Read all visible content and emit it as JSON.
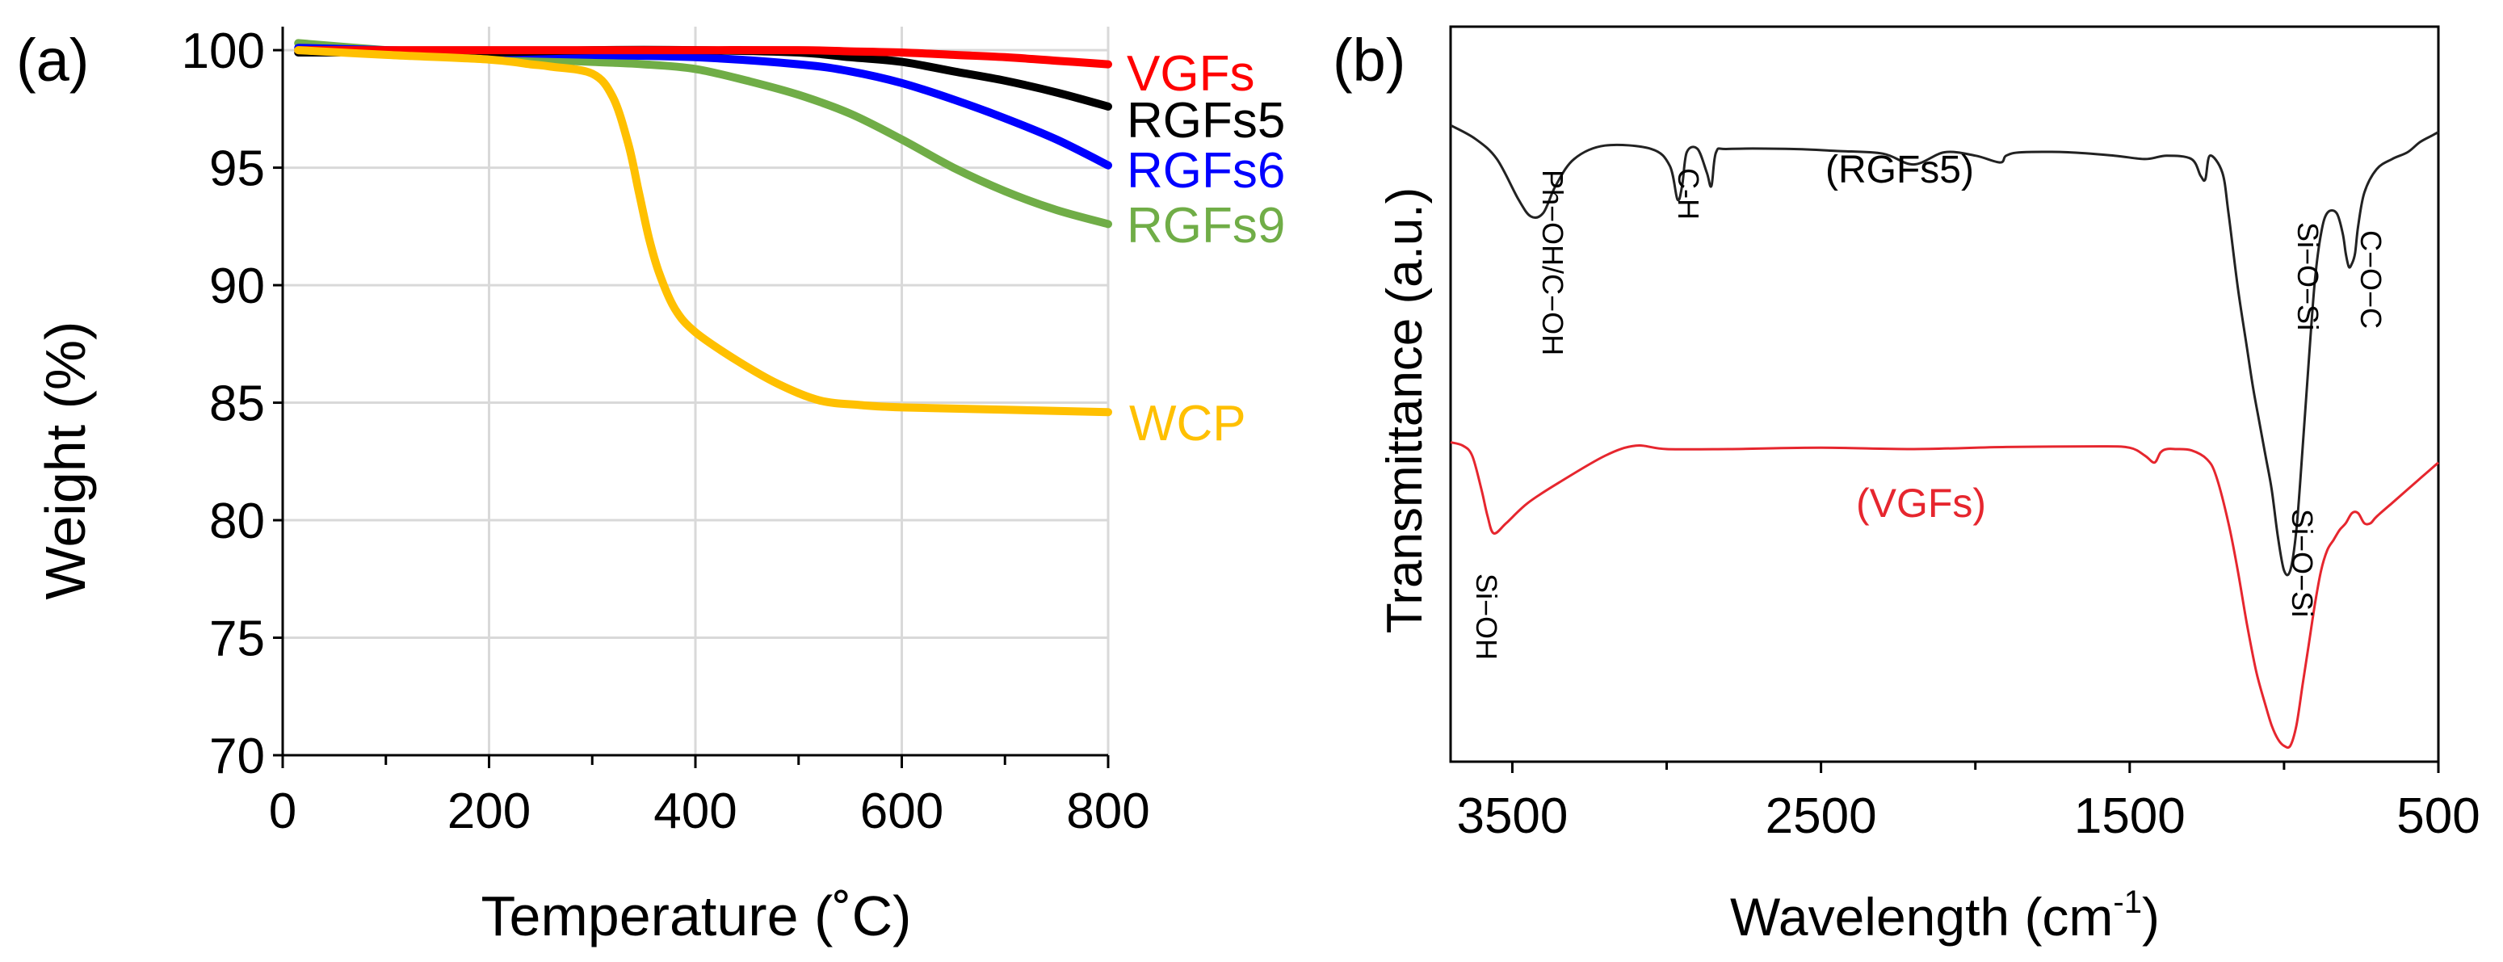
{
  "chart_data": [
    {
      "panel_label": "(a)",
      "type": "line",
      "xlabel": "Temperature (˚C)",
      "ylabel": "Weight (%)",
      "xlim": [
        0,
        800
      ],
      "ylim": [
        70,
        101
      ],
      "xticks": [
        0,
        200,
        400,
        600,
        800
      ],
      "xtick_labels": [
        "0",
        "200",
        "400",
        "600",
        "800"
      ],
      "yticks": [
        70,
        75,
        80,
        85,
        90,
        95,
        100
      ],
      "ytick_labels": [
        "70",
        "75",
        "80",
        "85",
        "90",
        "95",
        "100"
      ],
      "grid": true,
      "series": [
        {
          "name": "VGFs",
          "color": "#ff0000",
          "x": [
            15,
            100,
            200,
            300,
            400,
            500,
            550,
            600,
            650,
            700,
            750,
            800
          ],
          "y": [
            100.0,
            100.0,
            100.0,
            100.0,
            100.0,
            100.0,
            99.95,
            99.9,
            99.8,
            99.7,
            99.55,
            99.4
          ]
        },
        {
          "name": "RGFs5",
          "color": "#000000",
          "x": [
            15,
            100,
            200,
            300,
            400,
            500,
            550,
            600,
            650,
            700,
            750,
            800
          ],
          "y": [
            99.9,
            99.9,
            99.9,
            100.0,
            100.0,
            99.9,
            99.7,
            99.5,
            99.1,
            98.7,
            98.2,
            97.6
          ]
        },
        {
          "name": "RGFs6",
          "color": "#0000ff",
          "x": [
            15,
            100,
            200,
            300,
            400,
            500,
            550,
            600,
            650,
            700,
            750,
            800
          ],
          "y": [
            100.1,
            100.0,
            99.9,
            99.8,
            99.7,
            99.4,
            99.1,
            98.6,
            97.9,
            97.1,
            96.2,
            95.1
          ]
        },
        {
          "name": "RGFs9",
          "color": "#70ad47",
          "x": [
            15,
            100,
            200,
            250,
            300,
            350,
            400,
            450,
            500,
            550,
            600,
            650,
            700,
            750,
            800
          ],
          "y": [
            100.3,
            100.0,
            99.7,
            99.6,
            99.5,
            99.4,
            99.2,
            98.7,
            98.1,
            97.3,
            96.2,
            95.0,
            94.0,
            93.2,
            92.6
          ]
        },
        {
          "name": "WCP",
          "color": "#ffc000",
          "x": [
            15,
            100,
            200,
            240,
            260,
            300,
            320,
            335,
            345,
            355,
            365,
            380,
            400,
            440,
            480,
            520,
            560,
            600,
            700,
            800
          ],
          "y": [
            100.0,
            99.8,
            99.6,
            99.4,
            99.3,
            99.0,
            98.0,
            96.0,
            94.0,
            92.0,
            90.5,
            89.0,
            88.0,
            86.8,
            85.8,
            85.1,
            84.9,
            84.8,
            84.7,
            84.6
          ]
        }
      ],
      "annotations": [
        {
          "text": "VGFs",
          "color": "#ff0000"
        },
        {
          "text": "RGFs5",
          "color": "#000000"
        },
        {
          "text": "RGFs6",
          "color": "#0000ff"
        },
        {
          "text": "RGFs9",
          "color": "#70ad47"
        },
        {
          "text": "WCP",
          "color": "#ffc000"
        }
      ]
    },
    {
      "panel_label": "(b)",
      "type": "line",
      "xlabel_main": "Wavelength (cm",
      "xlabel_sup": "-1",
      "xlabel_end": ")",
      "ylabel": "Transmittance (a.u.)",
      "xlim": [
        3700,
        500
      ],
      "x_reversed": true,
      "xticks": [
        3500,
        2500,
        1500,
        500
      ],
      "xtick_labels": [
        "3500",
        "2500",
        "1500",
        "500"
      ],
      "minor_xticks": [
        3000,
        2000,
        1000
      ],
      "yticks_shown": false,
      "ylim": [
        0,
        100
      ],
      "series": [
        {
          "name": "RGFs5",
          "color": "#222222",
          "x": [
            3700,
            3620,
            3550,
            3480,
            3440,
            3400,
            3360,
            3300,
            3200,
            3050,
            2990,
            2965,
            2950,
            2935,
            2900,
            2870,
            2855,
            2840,
            2800,
            2600,
            2450,
            2300,
            2200,
            2100,
            2000,
            1920,
            1900,
            1850,
            1700,
            1550,
            1450,
            1380,
            1300,
            1270,
            1255,
            1240,
            1200,
            1180,
            1150,
            1120,
            1100,
            1080,
            1060,
            1040,
            1020,
            1000,
            980,
            960,
            940,
            920,
            900,
            880,
            860,
            830,
            810,
            800,
            790,
            780,
            770,
            760,
            740,
            700,
            650,
            600,
            560,
            520,
            500
          ],
          "y": [
            91,
            89,
            86,
            80,
            77.5,
            78,
            82,
            86,
            88,
            87.5,
            85,
            80,
            82,
            87,
            87.5,
            84,
            82,
            87,
            87.5,
            87.5,
            87.2,
            86.8,
            85.2,
            87,
            86.5,
            85.5,
            86.5,
            87,
            87,
            86.5,
            86,
            86.5,
            86,
            83.5,
            83,
            86.5,
            84,
            78,
            67,
            58,
            52,
            47,
            42,
            37,
            30,
            25,
            25,
            31,
            43,
            56,
            68,
            75,
            78,
            78,
            75,
            72,
            70,
            70.5,
            72,
            76,
            81,
            84.5,
            86,
            87,
            88.5,
            89.5,
            90
          ]
        },
        {
          "name": "VGFs",
          "color": "#e6262e",
          "x": [
            3700,
            3660,
            3630,
            3600,
            3580,
            3560,
            3520,
            3450,
            3350,
            3200,
            3100,
            3000,
            2800,
            2500,
            2200,
            1900,
            1600,
            1500,
            1450,
            1420,
            1400,
            1380,
            1350,
            1300,
            1250,
            1220,
            1180,
            1150,
            1120,
            1090,
            1060,
            1040,
            1020,
            1000,
            980,
            960,
            940,
            920,
            900,
            880,
            860,
            840,
            820,
            800,
            780,
            760,
            740,
            720,
            700,
            650,
            600,
            550,
            500
          ],
          "y": [
            44,
            43.5,
            42,
            37,
            33,
            30.5,
            32,
            35,
            38,
            42,
            43.5,
            43,
            43,
            43.2,
            43,
            43.3,
            43.4,
            43.2,
            42,
            41,
            42.5,
            43,
            43,
            42.8,
            41.5,
            39,
            32,
            25,
            17,
            10,
            5,
            2,
            0,
            -1,
            -1,
            2,
            8,
            14,
            20,
            25,
            28,
            29.5,
            31,
            32,
            33.5,
            33.5,
            32,
            32,
            33,
            35,
            37,
            39,
            41
          ]
        }
      ],
      "annotations": [
        {
          "text": "Ph−OH/C−OH",
          "vertical": true
        },
        {
          "text": "C-H",
          "vertical": true
        },
        {
          "text": "(RGFs5)",
          "color": "#000000"
        },
        {
          "text": "Si−O−Si",
          "vertical": true
        },
        {
          "text": "C−O−C",
          "vertical": true
        },
        {
          "text": "(VGFs)",
          "color": "#e6262e"
        },
        {
          "text": "Si−OH",
          "vertical": true
        },
        {
          "text": "Si−O−Si",
          "vertical": true
        }
      ]
    }
  ]
}
